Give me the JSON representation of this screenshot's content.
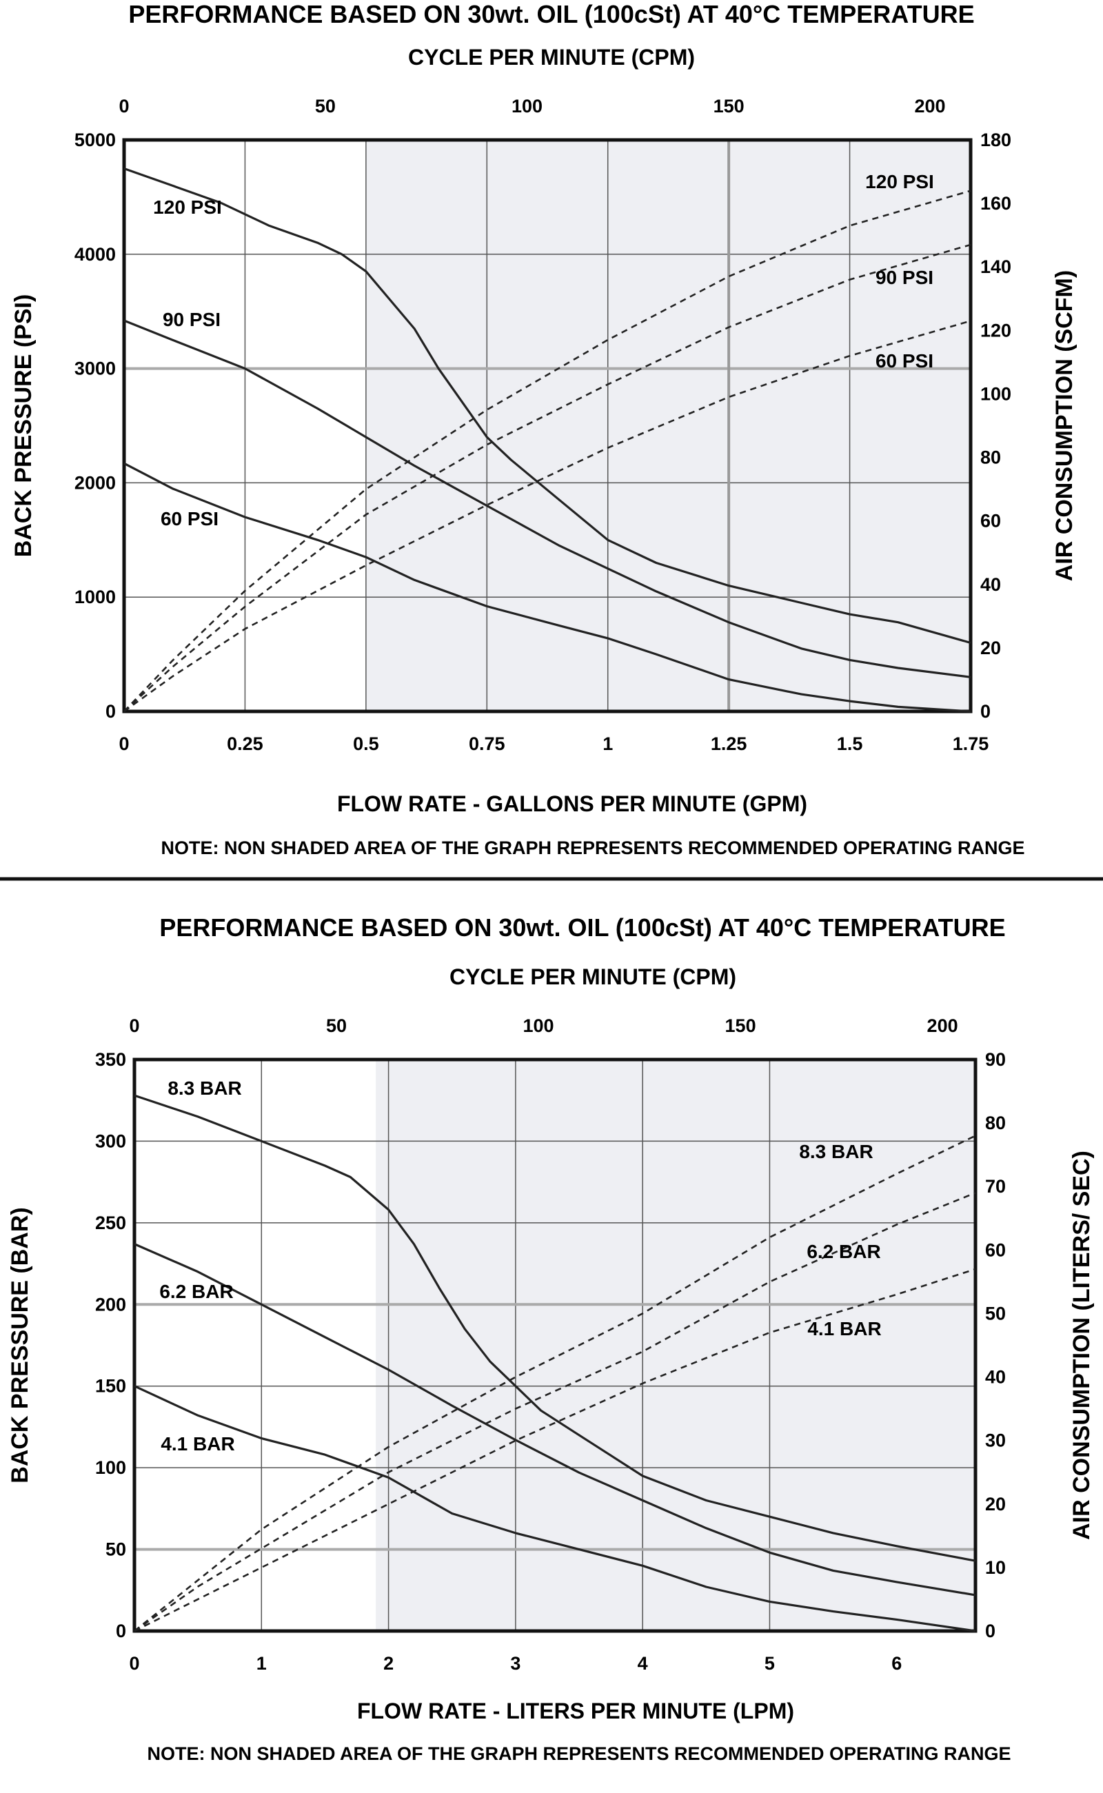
{
  "chart_data": [
    {
      "type": "line",
      "title": "PERFORMANCE BASED ON 30wt. OIL (100cSt) AT 40°C TEMPERATURE",
      "top_axis_label": "CYCLE PER MINUTE (CPM)",
      "xlabel": "FLOW RATE - GALLONS PER MINUTE (GPM)",
      "ylabel": "BACK PRESSURE  (PSI)",
      "y2label": "AIR CONSUMPTION (SCFM)",
      "note": "NOTE:  NON SHADED AREA OF THE GRAPH REPRESENTS RECOMMENDED OPERATING RANGE",
      "xlim": [
        0,
        1.75
      ],
      "ylim": [
        0,
        5000
      ],
      "y2lim": [
        0,
        180
      ],
      "x_ticks": [
        0,
        0.25,
        0.5,
        0.75,
        1,
        1.25,
        1.5,
        1.75
      ],
      "x_tick_labels": [
        "0",
        "0.25",
        "0.5",
        "0.75",
        "1",
        "1.25",
        "1.5",
        "1.75"
      ],
      "y_ticks": [
        0,
        1000,
        2000,
        3000,
        4000,
        5000
      ],
      "y_tick_labels": [
        "0",
        "1000",
        "2000",
        "3000",
        "4000",
        "5000"
      ],
      "y2_ticks": [
        0,
        20,
        40,
        60,
        80,
        100,
        120,
        140,
        160,
        180
      ],
      "y2_tick_labels": [
        "0",
        "20",
        "40",
        "60",
        "80",
        "100",
        "120",
        "140",
        "160",
        "180"
      ],
      "top_ticks_x": [
        0,
        0.416,
        0.833,
        1.25,
        1.666
      ],
      "top_tick_labels": [
        "0",
        "50",
        "100",
        "150",
        "200"
      ],
      "shaded_from_x": 0.5,
      "grid": true,
      "pressure_series": [
        {
          "name": "120 PSI",
          "x": [
            0,
            0.1,
            0.2,
            0.3,
            0.4,
            0.45,
            0.5,
            0.55,
            0.6,
            0.65,
            0.7,
            0.75,
            0.8,
            0.9,
            1.0,
            1.05,
            1.1,
            1.25,
            1.4,
            1.5,
            1.6,
            1.75
          ],
          "y": [
            4750,
            4600,
            4450,
            4250,
            4100,
            4000,
            3850,
            3600,
            3350,
            3000,
            2700,
            2400,
            2200,
            1850,
            1500,
            1400,
            1300,
            1100,
            950,
            850,
            780,
            600
          ]
        },
        {
          "name": "90 PSI",
          "x": [
            0,
            0.1,
            0.25,
            0.4,
            0.5,
            0.6,
            0.75,
            0.9,
            1.0,
            1.1,
            1.25,
            1.4,
            1.5,
            1.6,
            1.75
          ],
          "y": [
            3420,
            3250,
            3000,
            2650,
            2400,
            2150,
            1800,
            1450,
            1250,
            1050,
            780,
            550,
            450,
            380,
            300
          ]
        },
        {
          "name": "60 PSI",
          "x": [
            0,
            0.1,
            0.25,
            0.4,
            0.5,
            0.6,
            0.75,
            0.9,
            1.0,
            1.1,
            1.25,
            1.4,
            1.5,
            1.6,
            1.75
          ],
          "y": [
            2170,
            1950,
            1700,
            1500,
            1350,
            1150,
            920,
            750,
            640,
            500,
            280,
            150,
            90,
            40,
            0
          ]
        }
      ],
      "air_series": [
        {
          "name": "120 PSI",
          "x": [
            0,
            0.1,
            0.25,
            0.5,
            0.75,
            1.0,
            1.25,
            1.5,
            1.75
          ],
          "y": [
            0,
            16,
            38,
            70,
            95,
            117,
            137,
            153,
            164
          ]
        },
        {
          "name": "90 PSI",
          "x": [
            0,
            0.1,
            0.25,
            0.5,
            0.75,
            1.0,
            1.25,
            1.5,
            1.75
          ],
          "y": [
            0,
            14,
            33,
            62,
            84,
            103,
            121,
            136,
            147
          ]
        },
        {
          "name": "60 PSI",
          "x": [
            0,
            0.1,
            0.25,
            0.5,
            0.75,
            1.0,
            1.25,
            1.5,
            1.75
          ],
          "y": [
            0,
            11,
            26,
            46,
            65,
            83,
            99,
            112,
            123
          ]
        }
      ]
    },
    {
      "type": "line",
      "title": "PERFORMANCE BASED ON 30wt. OIL (100cSt) AT 40°C TEMPERATURE",
      "top_axis_label": "CYCLE PER MINUTE (CPM)",
      "xlabel": "FLOW RATE - LITERS PER MINUTE (LPM)",
      "ylabel": "BACK PRESSURE (BAR)",
      "y2label": "AIR CONSUMPTION (LITERS/ SEC)",
      "note": "NOTE: NON SHADED AREA OF THE GRAPH REPRESENTS RECOMMENDED OPERATING RANGE",
      "xlim": [
        0,
        6.62
      ],
      "ylim": [
        0,
        350
      ],
      "y2lim": [
        0,
        90
      ],
      "x_ticks": [
        0,
        1,
        2,
        3,
        4,
        5,
        6
      ],
      "x_tick_labels": [
        "0",
        "1",
        "2",
        "3",
        "4",
        "5",
        "6"
      ],
      "y_ticks": [
        0,
        50,
        100,
        150,
        200,
        250,
        300,
        350
      ],
      "y_tick_labels": [
        "0",
        "50",
        "100",
        "150",
        "200",
        "250",
        "300",
        "350"
      ],
      "y2_ticks": [
        0,
        10,
        20,
        30,
        40,
        50,
        60,
        70,
        80,
        90
      ],
      "y2_tick_labels": [
        "0",
        "10",
        "20",
        "30",
        "40",
        "50",
        "60",
        "70",
        "80",
        "90"
      ],
      "top_ticks_x": [
        0,
        1.59,
        3.18,
        4.77,
        6.36
      ],
      "top_tick_labels": [
        "0",
        "50",
        "100",
        "150",
        "200"
      ],
      "shaded_from_x": 1.9,
      "grid": true,
      "pressure_series": [
        {
          "name": "8.3 BAR",
          "x": [
            0,
            0.5,
            1.0,
            1.5,
            1.7,
            2.0,
            2.2,
            2.4,
            2.6,
            2.8,
            3.0,
            3.2,
            3.5,
            4.0,
            4.5,
            5.0,
            5.5,
            6.0,
            6.62
          ],
          "y": [
            328,
            315,
            300,
            285,
            278,
            258,
            237,
            210,
            185,
            165,
            150,
            135,
            120,
            95,
            80,
            70,
            60,
            52,
            43
          ]
        },
        {
          "name": "6.2 BAR",
          "x": [
            0,
            0.5,
            1.0,
            1.5,
            2.0,
            2.5,
            3.0,
            3.5,
            4.0,
            4.5,
            5.0,
            5.5,
            6.0,
            6.62
          ],
          "y": [
            237,
            220,
            200,
            180,
            160,
            138,
            117,
            97,
            80,
            63,
            48,
            37,
            30,
            22
          ]
        },
        {
          "name": "4.1 BAR",
          "x": [
            0,
            0.5,
            1.0,
            1.5,
            2.0,
            2.5,
            3.0,
            3.5,
            4.0,
            4.5,
            5.0,
            5.5,
            6.0,
            6.62
          ],
          "y": [
            150,
            132,
            118,
            108,
            94,
            72,
            60,
            50,
            40,
            27,
            18,
            12,
            7,
            0
          ]
        }
      ],
      "air_series": [
        {
          "name": "8.3 BAR",
          "x": [
            0,
            0.5,
            1.0,
            2.0,
            3.0,
            4.0,
            5.0,
            6.0,
            6.62
          ],
          "y": [
            0,
            8,
            16,
            29,
            40,
            50,
            62,
            72,
            78
          ]
        },
        {
          "name": "6.2 BAR",
          "x": [
            0,
            0.5,
            1.0,
            2.0,
            3.0,
            4.0,
            5.0,
            6.0,
            6.62
          ],
          "y": [
            0,
            7,
            13,
            25,
            35,
            44,
            55,
            64,
            69
          ]
        },
        {
          "name": "4.1 BAR",
          "x": [
            0,
            0.5,
            1.0,
            2.0,
            3.0,
            4.0,
            5.0,
            6.0,
            6.62
          ],
          "y": [
            0,
            5,
            10,
            20,
            30,
            39,
            47,
            53,
            57
          ]
        }
      ]
    }
  ]
}
